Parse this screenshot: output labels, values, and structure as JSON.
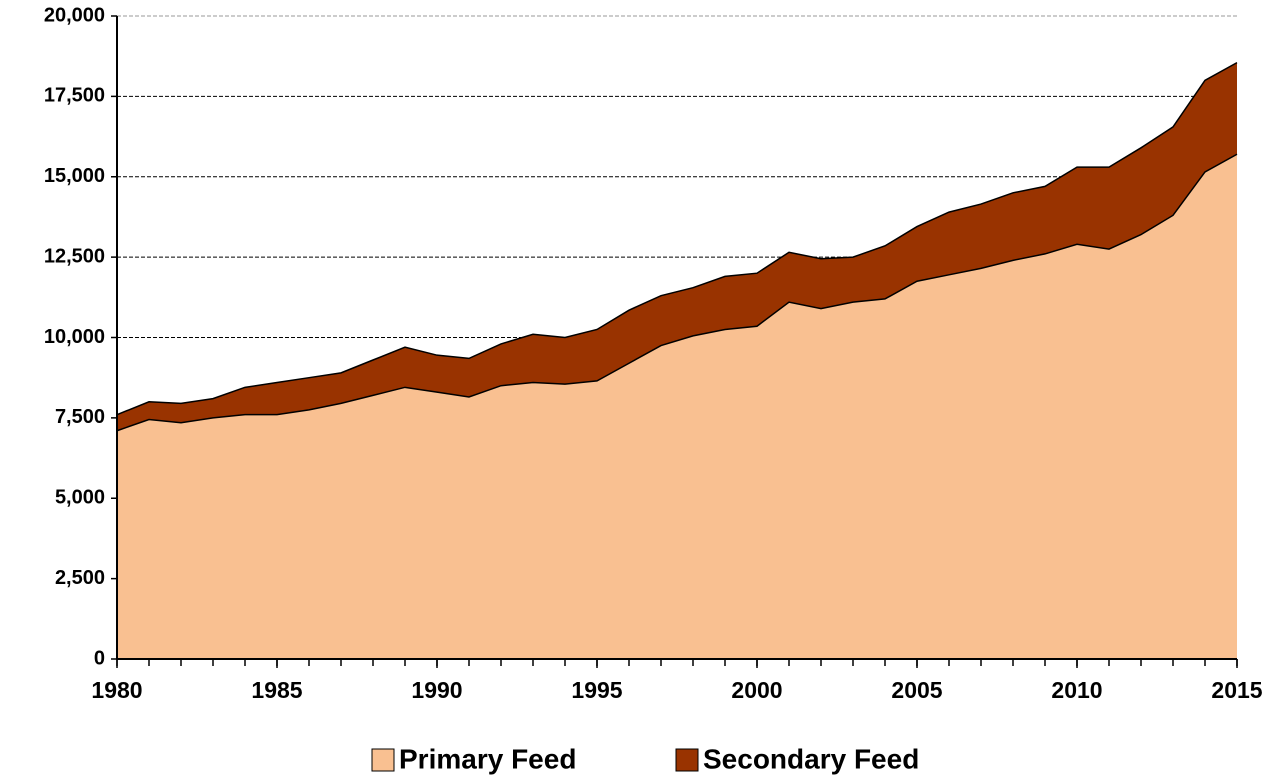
{
  "chart_data": {
    "type": "stacked_area",
    "x": [
      1980,
      1981,
      1982,
      1983,
      1984,
      1985,
      1986,
      1987,
      1988,
      1989,
      1990,
      1991,
      1992,
      1993,
      1994,
      1995,
      1996,
      1997,
      1998,
      1999,
      2000,
      2001,
      2002,
      2003,
      2004,
      2005,
      2006,
      2007,
      2008,
      2009,
      2010,
      2011,
      2012,
      2013,
      2014,
      2015
    ],
    "series": [
      {
        "name": "Primary Feed",
        "color": "#f9c091",
        "values": [
          7100,
          7450,
          7350,
          7500,
          7600,
          7600,
          7750,
          7950,
          8200,
          8450,
          8300,
          8150,
          8500,
          8600,
          8550,
          8650,
          9200,
          9750,
          10050,
          10250,
          10350,
          11100,
          10900,
          11100,
          11200,
          11750,
          11950,
          12150,
          12400,
          12600,
          12900,
          12750,
          13200,
          13800,
          15150,
          15700
        ]
      },
      {
        "name": "Secondary Feed",
        "color": "#993300",
        "values": [
          500,
          550,
          600,
          600,
          850,
          1000,
          1000,
          950,
          1100,
          1250,
          1150,
          1200,
          1300,
          1500,
          1450,
          1600,
          1650,
          1550,
          1500,
          1650,
          1650,
          1550,
          1550,
          1400,
          1650,
          1700,
          1950,
          2000,
          2100,
          2100,
          2400,
          2550,
          2700,
          2750,
          2850,
          2850
        ]
      }
    ],
    "xlim": [
      1980,
      2015
    ],
    "xticks": [
      1980,
      1985,
      1990,
      1995,
      2000,
      2005,
      2010,
      2015
    ],
    "ylim": [
      0,
      20000
    ],
    "yticks": [
      0,
      {
        "value": 2500,
        "label": "2,500"
      },
      {
        "value": 5000,
        "label": "5,000"
      },
      {
        "value": 7500,
        "label": "7,500"
      },
      {
        "value": 10000,
        "label": "10,000"
      },
      {
        "value": 12500,
        "label": "12,500"
      },
      {
        "value": 15000,
        "label": "15,000"
      },
      {
        "value": 17500,
        "label": "17,500"
      },
      {
        "value": 20000,
        "label": "20,000"
      }
    ],
    "grid": true,
    "legend": "bottom"
  }
}
